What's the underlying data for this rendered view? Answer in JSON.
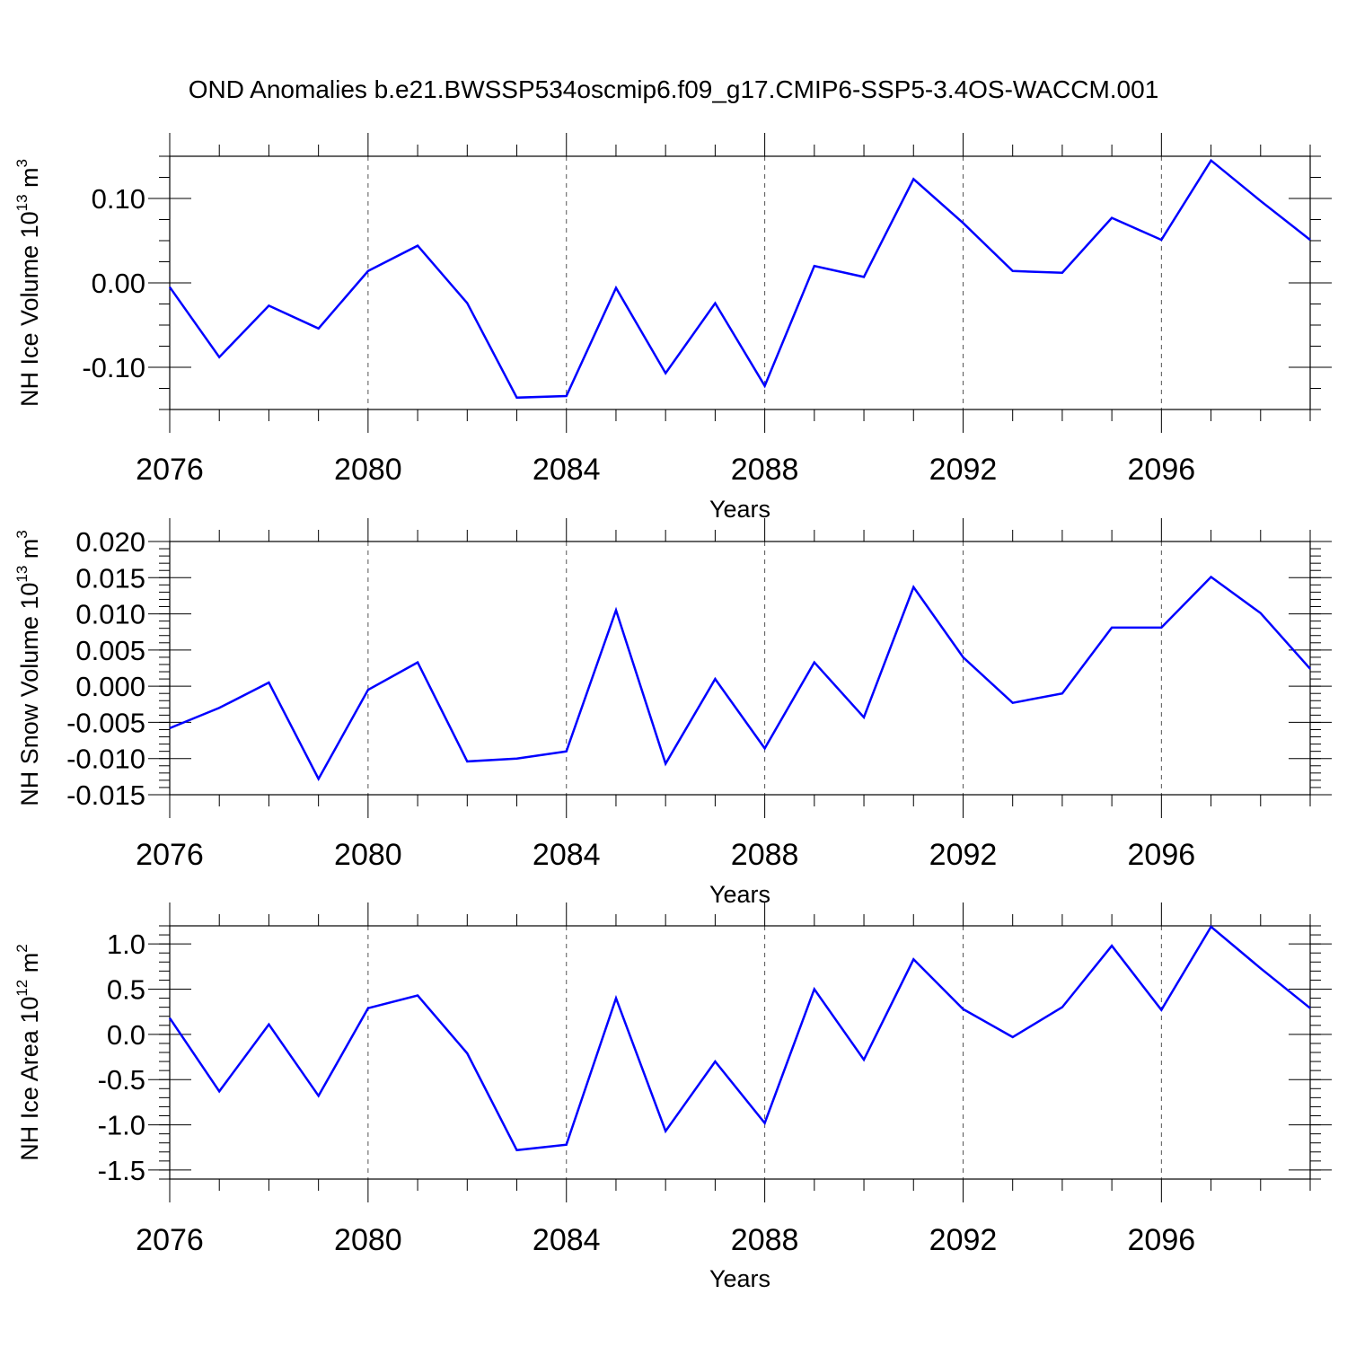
{
  "title": "OND Anomalies b.e21.BWSSP534oscmip6.f09_g17.CMIP6-SSP5-3.4OS-WACCM.001",
  "chart_data": [
    {
      "type": "line",
      "title": "",
      "xlabel": "Years",
      "ylabel": "NH Ice Volume 10",
      "ylabel_exp": "13",
      "ylabel_unit": " m",
      "ylabel_unit_exp": "3",
      "xlim": [
        2076,
        2099
      ],
      "ylim": [
        -0.15,
        0.15
      ],
      "xticks": [
        2076,
        2080,
        2084,
        2088,
        2092,
        2096
      ],
      "yticks": [
        "0.10",
        "0.00",
        "-0.10"
      ],
      "ytick_values": [
        0.1,
        0.0,
        -0.1
      ],
      "grid": "vertical dashed at major x ticks",
      "series": [
        {
          "color": "#0000ff",
          "x": [
            2076,
            2077,
            2078,
            2079,
            2080,
            2081,
            2082,
            2083,
            2084,
            2085,
            2086,
            2087,
            2088,
            2089,
            2090,
            2091,
            2092,
            2093,
            2094,
            2095,
            2096,
            2097,
            2098,
            2099
          ],
          "values": [
            -0.005,
            -0.088,
            -0.027,
            -0.054,
            0.014,
            0.044,
            -0.024,
            -0.136,
            -0.134,
            -0.006,
            -0.107,
            -0.024,
            -0.122,
            0.02,
            0.007,
            0.123,
            0.071,
            0.014,
            0.012,
            0.077,
            0.051,
            0.145,
            0.097,
            0.051
          ]
        }
      ]
    },
    {
      "type": "line",
      "title": "",
      "xlabel": "Years",
      "ylabel": "NH Snow Volume 10",
      "ylabel_exp": "13",
      "ylabel_unit": " m",
      "ylabel_unit_exp": "3",
      "xlim": [
        2076,
        2099
      ],
      "ylim": [
        -0.015,
        0.02
      ],
      "xticks": [
        2076,
        2080,
        2084,
        2088,
        2092,
        2096
      ],
      "yticks": [
        "0.020",
        "0.015",
        "0.010",
        "0.005",
        "0.000",
        "-0.005",
        "-0.010",
        "-0.015"
      ],
      "ytick_values": [
        0.02,
        0.015,
        0.01,
        0.005,
        0.0,
        -0.005,
        -0.01,
        -0.015
      ],
      "grid": "vertical dashed at major x ticks",
      "series": [
        {
          "color": "#0000ff",
          "x": [
            2076,
            2077,
            2078,
            2079,
            2080,
            2081,
            2082,
            2083,
            2084,
            2085,
            2086,
            2087,
            2088,
            2089,
            2090,
            2091,
            2092,
            2093,
            2094,
            2095,
            2096,
            2097,
            2098,
            2099
          ],
          "values": [
            -0.0058,
            -0.003,
            0.0005,
            -0.0128,
            -0.0005,
            0.0033,
            -0.0104,
            -0.01,
            -0.009,
            0.0105,
            -0.0107,
            0.001,
            -0.0086,
            0.0033,
            -0.0043,
            0.0137,
            0.004,
            -0.0023,
            -0.001,
            0.0081,
            0.0081,
            0.0151,
            0.0101,
            0.0024
          ]
        }
      ]
    },
    {
      "type": "line",
      "title": "",
      "xlabel": "Years",
      "ylabel": "NH Ice Area 10",
      "ylabel_exp": "12",
      "ylabel_unit": " m",
      "ylabel_unit_exp": "2",
      "xlim": [
        2076,
        2099
      ],
      "ylim": [
        -1.6,
        1.2
      ],
      "xticks": [
        2076,
        2080,
        2084,
        2088,
        2092,
        2096
      ],
      "yticks": [
        "1.0",
        "0.5",
        "0.0",
        "-0.5",
        "-1.0",
        "-1.5"
      ],
      "ytick_values": [
        1.0,
        0.5,
        0.0,
        -0.5,
        -1.0,
        -1.5
      ],
      "grid": "vertical dashed at major x ticks",
      "series": [
        {
          "color": "#0000ff",
          "x": [
            2076,
            2077,
            2078,
            2079,
            2080,
            2081,
            2082,
            2083,
            2084,
            2085,
            2086,
            2087,
            2088,
            2089,
            2090,
            2091,
            2092,
            2093,
            2094,
            2095,
            2096,
            2097,
            2098,
            2099
          ],
          "values": [
            0.18,
            -0.63,
            0.11,
            -0.68,
            0.29,
            0.43,
            -0.21,
            -1.28,
            -1.22,
            0.4,
            -1.07,
            -0.3,
            -0.98,
            0.5,
            -0.28,
            0.83,
            0.28,
            -0.03,
            0.3,
            0.98,
            0.27,
            1.19,
            0.73,
            0.29
          ]
        }
      ]
    }
  ]
}
